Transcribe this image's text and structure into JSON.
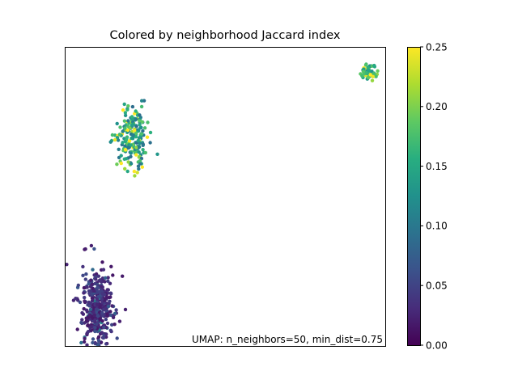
{
  "chart_data": {
    "type": "scatter",
    "title": "Colored by neighborhood Jaccard index",
    "xlabel": "",
    "ylabel": "",
    "annotation": "UMAP: n_neighbors=50, min_dist=0.75",
    "axes_ticks_visible": false,
    "grid": false,
    "legend": "none",
    "colorbar": {
      "colormap": "viridis",
      "range": [
        0.0,
        0.25
      ],
      "ticks": [
        0.0,
        0.05,
        0.1,
        0.15,
        0.2,
        0.25
      ],
      "tick_labels": [
        "0.00",
        "0.05",
        "0.10",
        "0.15",
        "0.20",
        "0.25"
      ],
      "position": "right"
    },
    "xlim": [
      0,
      100
    ],
    "ylim": [
      0,
      100
    ],
    "clusters": [
      {
        "center_x": 10,
        "center_y": 13,
        "spread_x": 2.5,
        "spread_y": 6.5,
        "count": 420,
        "value_mean": 0.015,
        "value_spread": 0.03
      },
      {
        "center_x": 21,
        "center_y": 70,
        "spread_x": 2.5,
        "spread_y": 5.5,
        "count": 190,
        "value_mean": 0.09,
        "value_spread": 0.09
      },
      {
        "center_x": 95,
        "center_y": 92,
        "spread_x": 1.3,
        "spread_y": 1.5,
        "count": 60,
        "value_mean": 0.12,
        "value_spread": 0.09
      }
    ]
  }
}
